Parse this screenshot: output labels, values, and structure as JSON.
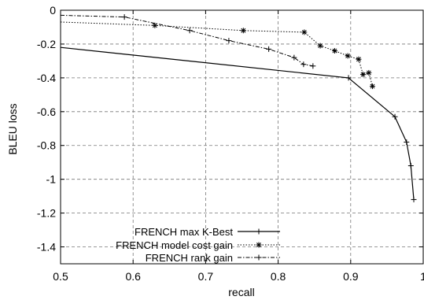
{
  "chart_data": {
    "type": "line",
    "title": "",
    "xlabel": "recall",
    "ylabel": "BLEU loss",
    "xlim": [
      0.5,
      1.0
    ],
    "ylim": [
      -1.5,
      0
    ],
    "xticks": [
      0.5,
      0.6,
      0.7,
      0.8,
      0.9,
      1.0
    ],
    "xtick_labels": [
      "0.5",
      "0.6",
      "0.7",
      "0.8",
      "0.9",
      "1"
    ],
    "yticks": [
      0,
      -0.2,
      -0.4,
      -0.6,
      -0.8,
      -1,
      -1.2,
      -1.4
    ],
    "ytick_labels": [
      "0",
      "-0.2",
      "-0.4",
      "-0.6",
      "-0.8",
      "-1",
      "-1.2",
      "-1.4"
    ],
    "grid": true,
    "legend_position": "bottom-left",
    "series": [
      {
        "name": "FRENCH max K-Best",
        "style": "solid",
        "marker": "+",
        "line_start": [
          0.5,
          -0.22
        ],
        "x": [
          0.897,
          0.961,
          0.977,
          0.983,
          0.987
        ],
        "y": [
          -0.4,
          -0.63,
          -0.78,
          -0.92,
          -1.12
        ]
      },
      {
        "name": "FRENCH model cost gain",
        "style": "dotted",
        "marker": "*",
        "line_start": [
          0.5,
          -0.07
        ],
        "x": [
          0.63,
          0.752,
          0.836,
          0.858,
          0.878,
          0.896,
          0.911,
          0.917,
          0.925,
          0.93
        ],
        "y": [
          -0.09,
          -0.12,
          -0.13,
          -0.21,
          -0.24,
          -0.27,
          -0.29,
          -0.38,
          -0.37,
          -0.45
        ]
      },
      {
        "name": "FRENCH rank gain",
        "style": "dashdot",
        "marker": "+",
        "line_start": [
          0.5,
          -0.03
        ],
        "x": [
          0.588,
          0.678,
          0.732,
          0.787,
          0.822,
          0.835,
          0.848
        ],
        "y": [
          -0.04,
          -0.12,
          -0.18,
          -0.23,
          -0.28,
          -0.32,
          -0.33
        ]
      }
    ]
  }
}
